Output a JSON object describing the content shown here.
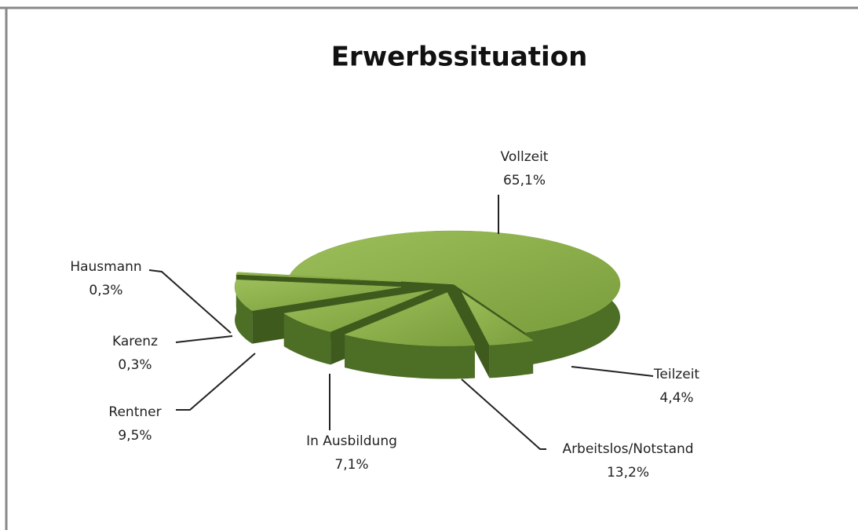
{
  "chart_data": {
    "type": "pie3d",
    "title": "Erwerbssituation",
    "categories": [
      "Vollzeit",
      "Teilzeit",
      "Arbeitslos/Notstand",
      "In Ausbildung",
      "Rentner",
      "Karenz",
      "Hausmann"
    ],
    "values": [
      65.1,
      4.4,
      13.2,
      7.1,
      9.5,
      0.3,
      0.3
    ],
    "value_labels": [
      "65,1%",
      "4,4%",
      "13,2%",
      "7,1%",
      "9,5%",
      "0,3%",
      "0,3%"
    ],
    "color": "#8db04a"
  }
}
